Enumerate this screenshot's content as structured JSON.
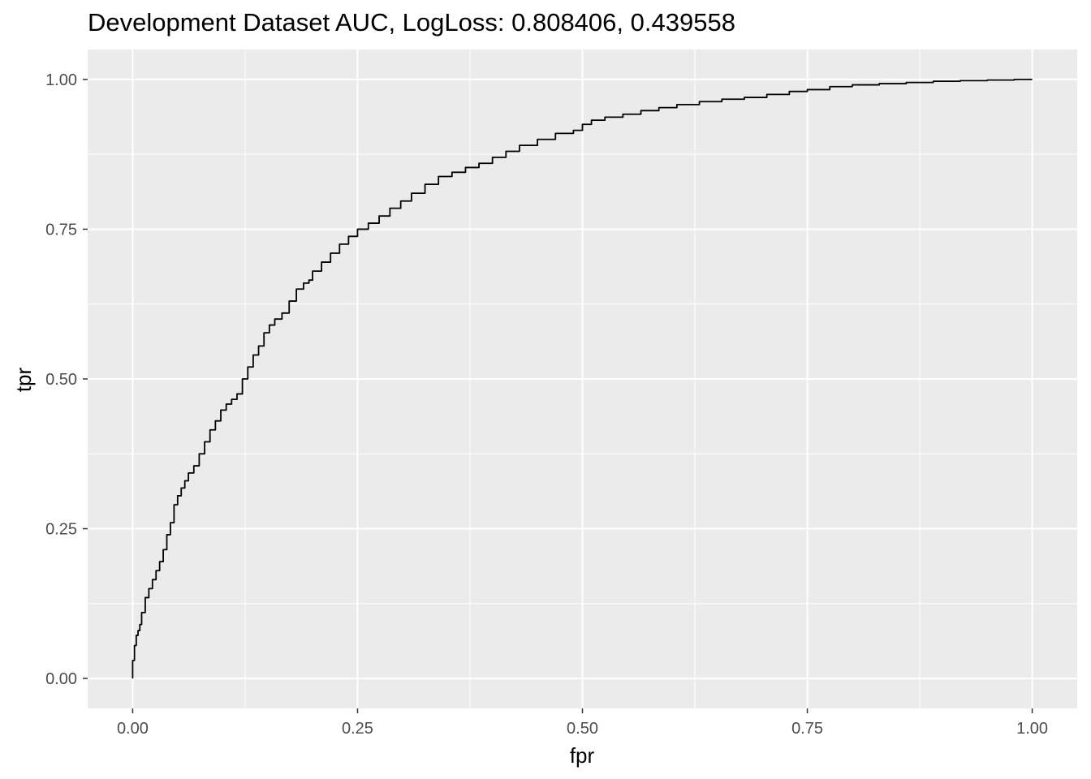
{
  "chart_data": {
    "type": "line",
    "title": "Development Dataset AUC, LogLoss: 0.808406, 0.439558",
    "xlabel": "fpr",
    "ylabel": "tpr",
    "xlim": [
      -0.05,
      1.05
    ],
    "ylim": [
      -0.05,
      1.05
    ],
    "x_ticks": [
      0,
      0.25,
      0.5,
      0.75,
      1
    ],
    "y_ticks": [
      0,
      0.25,
      0.5,
      0.75,
      1
    ],
    "x_tick_labels": [
      "0.00",
      "0.25",
      "0.50",
      "0.75",
      "1.00"
    ],
    "y_tick_labels": [
      "0.00",
      "0.25",
      "0.50",
      "0.75",
      "1.00"
    ],
    "grid": true,
    "legend": "none",
    "colors": {
      "panel": "#EBEBEB",
      "grid": "#FFFFFF",
      "line": "#000000",
      "tick_label": "#4D4D4D"
    },
    "series": [
      {
        "x": [
          0.0,
          0.0,
          0.002,
          0.004,
          0.006,
          0.008,
          0.01,
          0.014,
          0.018,
          0.022,
          0.026,
          0.03,
          0.034,
          0.038,
          0.042,
          0.046,
          0.05,
          0.054,
          0.058,
          0.062,
          0.068,
          0.074,
          0.08,
          0.086,
          0.092,
          0.098,
          0.104,
          0.11,
          0.116,
          0.122,
          0.128,
          0.134,
          0.14,
          0.146,
          0.152,
          0.158,
          0.166,
          0.174,
          0.182,
          0.19,
          0.196,
          0.2,
          0.21,
          0.22,
          0.23,
          0.24,
          0.25,
          0.262,
          0.274,
          0.286,
          0.298,
          0.31,
          0.325,
          0.34,
          0.355,
          0.37,
          0.385,
          0.4,
          0.415,
          0.43,
          0.45,
          0.47,
          0.49,
          0.5,
          0.51,
          0.525,
          0.545,
          0.565,
          0.585,
          0.605,
          0.63,
          0.655,
          0.68,
          0.705,
          0.73,
          0.75,
          0.775,
          0.8,
          0.83,
          0.86,
          0.89,
          0.92,
          0.95,
          0.98,
          1.0
        ],
        "y": [
          0.0,
          0.01,
          0.03,
          0.055,
          0.072,
          0.08,
          0.09,
          0.11,
          0.135,
          0.15,
          0.165,
          0.18,
          0.195,
          0.215,
          0.24,
          0.26,
          0.29,
          0.305,
          0.318,
          0.33,
          0.343,
          0.355,
          0.375,
          0.395,
          0.415,
          0.43,
          0.448,
          0.458,
          0.466,
          0.475,
          0.5,
          0.52,
          0.54,
          0.555,
          0.577,
          0.59,
          0.6,
          0.61,
          0.63,
          0.65,
          0.66,
          0.665,
          0.68,
          0.695,
          0.71,
          0.725,
          0.738,
          0.75,
          0.76,
          0.772,
          0.785,
          0.797,
          0.81,
          0.825,
          0.838,
          0.845,
          0.853,
          0.86,
          0.87,
          0.88,
          0.89,
          0.9,
          0.91,
          0.915,
          0.925,
          0.932,
          0.937,
          0.942,
          0.948,
          0.953,
          0.958,
          0.963,
          0.967,
          0.97,
          0.975,
          0.98,
          0.983,
          0.988,
          0.991,
          0.993,
          0.995,
          0.997,
          0.998,
          0.999,
          1.0
        ]
      }
    ]
  }
}
